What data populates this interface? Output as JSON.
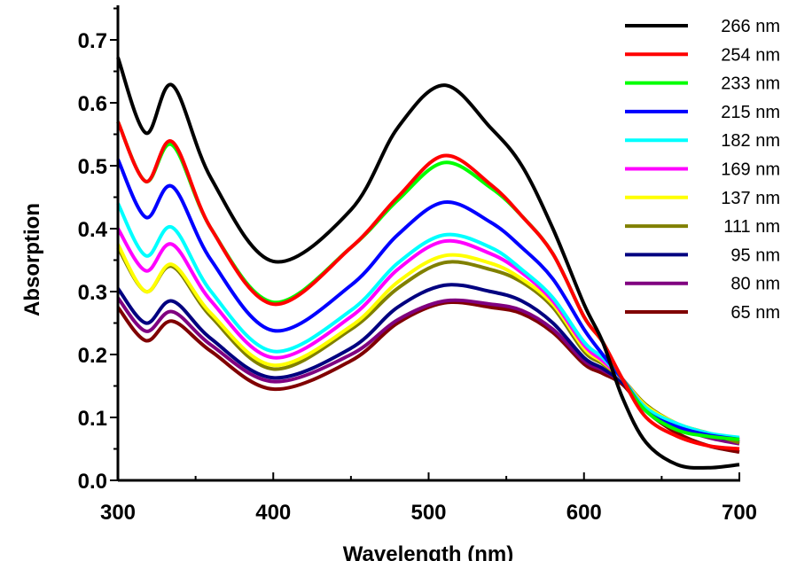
{
  "chart_data": {
    "type": "line",
    "title": "",
    "xlabel": "Wavelength (nm)",
    "ylabel": "Absorption",
    "xlim": [
      300,
      700
    ],
    "ylim": [
      0,
      0.75
    ],
    "xticks": [
      "300",
      "400",
      "500",
      "600",
      "700"
    ],
    "yticks": [
      "0.0",
      "0.1",
      "0.2",
      "0.3",
      "0.4",
      "0.5",
      "0.6",
      "0.7"
    ],
    "grid": false,
    "legend_position": "top-right",
    "x": [
      300,
      318,
      335,
      360,
      400,
      450,
      480,
      510,
      540,
      560,
      580,
      600,
      612,
      625,
      640,
      660,
      680,
      700
    ],
    "series": [
      {
        "name": "266 nm",
        "color": "#000000",
        "values": [
          0.672,
          0.552,
          0.628,
          0.48,
          0.348,
          0.43,
          0.56,
          0.628,
          0.56,
          0.5,
          0.4,
          0.28,
          0.22,
          0.13,
          0.06,
          0.025,
          0.02,
          0.025
        ]
      },
      {
        "name": "254 nm",
        "color": "#ff0000",
        "values": [
          0.57,
          0.475,
          0.538,
          0.4,
          0.28,
          0.37,
          0.45,
          0.516,
          0.47,
          0.42,
          0.36,
          0.26,
          0.22,
          0.16,
          0.1,
          0.07,
          0.055,
          0.05
        ]
      },
      {
        "name": "233 nm",
        "color": "#00ff00",
        "values": [
          0.57,
          0.475,
          0.533,
          0.4,
          0.283,
          0.37,
          0.445,
          0.505,
          0.465,
          0.42,
          0.36,
          0.26,
          0.22,
          0.16,
          0.11,
          0.08,
          0.07,
          0.065
        ]
      },
      {
        "name": "215 nm",
        "color": "#0000ff",
        "values": [
          0.51,
          0.418,
          0.467,
          0.35,
          0.238,
          0.31,
          0.39,
          0.442,
          0.41,
          0.37,
          0.32,
          0.24,
          0.2,
          0.16,
          0.11,
          0.085,
          0.072,
          0.065
        ]
      },
      {
        "name": "182 nm",
        "color": "#00ffff",
        "values": [
          0.44,
          0.357,
          0.402,
          0.3,
          0.205,
          0.27,
          0.345,
          0.39,
          0.37,
          0.335,
          0.29,
          0.22,
          0.195,
          0.16,
          0.115,
          0.09,
          0.075,
          0.068
        ]
      },
      {
        "name": "169 nm",
        "color": "#ff00ff",
        "values": [
          0.4,
          0.333,
          0.375,
          0.285,
          0.195,
          0.26,
          0.335,
          0.38,
          0.36,
          0.33,
          0.285,
          0.215,
          0.19,
          0.16,
          0.115,
          0.088,
          0.073,
          0.065
        ]
      },
      {
        "name": "137 nm",
        "color": "#ffff00",
        "values": [
          0.375,
          0.3,
          0.343,
          0.265,
          0.183,
          0.245,
          0.315,
          0.357,
          0.345,
          0.32,
          0.28,
          0.21,
          0.188,
          0.16,
          0.118,
          0.09,
          0.075,
          0.065
        ]
      },
      {
        "name": "111 nm",
        "color": "#808000",
        "values": [
          0.37,
          0.3,
          0.34,
          0.26,
          0.177,
          0.24,
          0.305,
          0.346,
          0.335,
          0.315,
          0.275,
          0.205,
          0.185,
          0.16,
          0.12,
          0.09,
          0.075,
          0.06
        ]
      },
      {
        "name": "95 nm",
        "color": "#000080",
        "values": [
          0.305,
          0.25,
          0.285,
          0.225,
          0.163,
          0.21,
          0.275,
          0.31,
          0.3,
          0.285,
          0.25,
          0.195,
          0.178,
          0.155,
          0.115,
          0.088,
          0.072,
          0.062
        ]
      },
      {
        "name": "80 nm",
        "color": "#800080",
        "values": [
          0.29,
          0.237,
          0.268,
          0.215,
          0.157,
          0.2,
          0.255,
          0.285,
          0.28,
          0.27,
          0.24,
          0.19,
          0.175,
          0.155,
          0.115,
          0.085,
          0.068,
          0.058
        ]
      },
      {
        "name": "65 nm",
        "color": "#800000",
        "values": [
          0.275,
          0.222,
          0.253,
          0.205,
          0.145,
          0.19,
          0.25,
          0.282,
          0.275,
          0.265,
          0.235,
          0.185,
          0.17,
          0.152,
          0.11,
          0.075,
          0.055,
          0.045
        ]
      }
    ]
  }
}
